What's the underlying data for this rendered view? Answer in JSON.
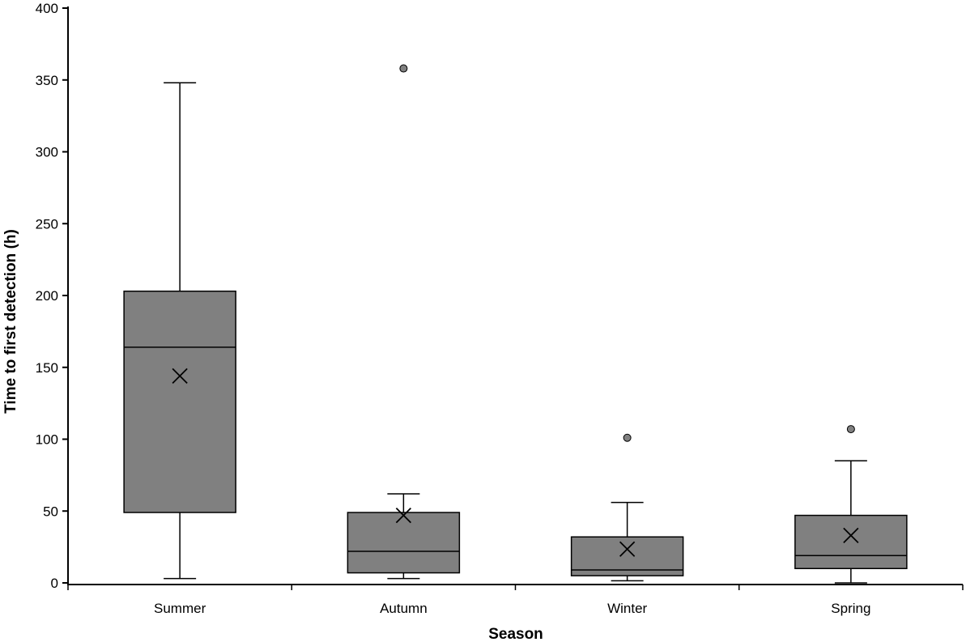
{
  "chart_data": {
    "type": "boxplot",
    "title": "",
    "xlabel": "Season",
    "ylabel": "Time to first detection (h)",
    "ylim": [
      0,
      400
    ],
    "yticks": [
      0,
      50,
      100,
      150,
      200,
      250,
      300,
      350,
      400
    ],
    "grid": false,
    "legend": "none",
    "categories": [
      "Summer",
      "Autumn",
      "Winter",
      "Spring"
    ],
    "boxes": [
      {
        "category": "Summer",
        "whisker_low": 3,
        "q1": 49,
        "median": 164,
        "q3": 203,
        "whisker_high": 348,
        "mean": 144,
        "outliers": []
      },
      {
        "category": "Autumn",
        "whisker_low": 3,
        "q1": 7,
        "median": 22,
        "q3": 49,
        "whisker_high": 62,
        "mean": 47,
        "outliers": [
          358
        ]
      },
      {
        "category": "Winter",
        "whisker_low": 1.5,
        "q1": 5,
        "median": 9,
        "q3": 32,
        "whisker_high": 56,
        "mean": 23.5,
        "outliers": [
          101
        ]
      },
      {
        "category": "Spring",
        "whisker_low": 0,
        "q1": 10,
        "median": 19,
        "q3": 47,
        "whisker_high": 85,
        "mean": 33,
        "outliers": [
          107
        ]
      }
    ],
    "colors": {
      "box_fill": "#808080",
      "stroke": "#000000",
      "outlier_fill": "#808080"
    }
  }
}
